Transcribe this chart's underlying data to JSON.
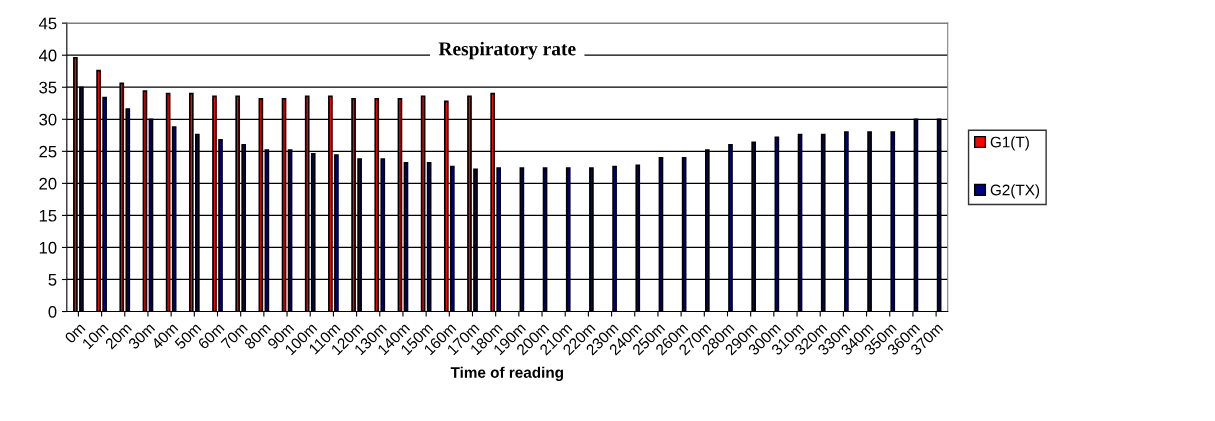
{
  "chart_data": {
    "type": "bar",
    "title": "Respiratory rate",
    "xlabel": "Time of reading",
    "categories": [
      "0m",
      "10m",
      "20m",
      "30m",
      "40m",
      "50m",
      "60m",
      "70m",
      "80m",
      "90m",
      "100m",
      "110m",
      "120m",
      "130m",
      "140m",
      "150m",
      "160m",
      "170m",
      "180m",
      "190m",
      "200m",
      "210m",
      "220m",
      "230m",
      "240m",
      "250m",
      "260m",
      "270m",
      "280m",
      "290m",
      "300m",
      "310m",
      "320m",
      "330m",
      "340m",
      "350m",
      "360m",
      "370m"
    ],
    "series": [
      {
        "name": "G1(T)",
        "color": "#ff0000",
        "values": [
          39.6,
          37.6,
          35.6,
          34.4,
          34,
          34,
          33.6,
          33.6,
          33.2,
          33.2,
          33.6,
          33.6,
          33.2,
          33.2,
          33.2,
          33.6,
          32.8,
          33.6,
          34,
          null,
          null,
          null,
          null,
          null,
          null,
          null,
          null,
          null,
          null,
          null,
          null,
          null,
          null,
          null,
          null,
          null,
          null,
          null
        ]
      },
      {
        "name": "G2(TX)",
        "color": "#000080",
        "values": [
          35,
          33.4,
          31.6,
          30,
          28.8,
          27.6,
          26.8,
          26,
          25.2,
          25.2,
          24.6,
          24.4,
          23.8,
          23.8,
          23.2,
          23.2,
          22.6,
          22.2,
          22.4,
          22.4,
          22.4,
          22.4,
          22.4,
          22.6,
          22.8,
          24,
          24,
          25.2,
          26,
          26.4,
          27.2,
          27.6,
          27.6,
          28,
          28,
          28,
          30,
          30
        ]
      }
    ],
    "ylim": [
      0,
      45
    ],
    "yticks": [
      0,
      5,
      10,
      15,
      20,
      25,
      30,
      35,
      40,
      45
    ],
    "grid": "y",
    "legend": "right"
  }
}
